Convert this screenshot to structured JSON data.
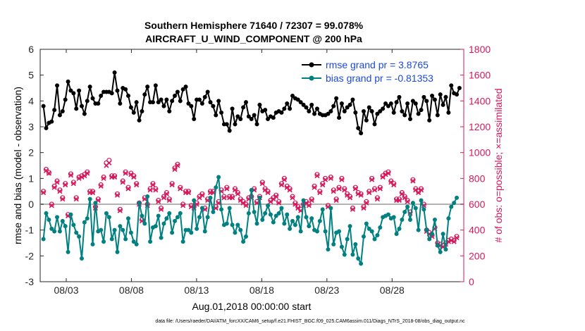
{
  "chart_data": {
    "type": "line",
    "title": "Southern Hemisphere 71640 / 72307 = 99.078%",
    "subtitle": "AIRCRAFT_U_WIND_COMPONENT @ 200 hPa",
    "xlabel": "Aug.01,2018 00:00:00 start",
    "ylabel": "rmse and bias (model - observation)",
    "y2label": "# of obs: o=possible; ×=assimilated",
    "xlim": [
      0,
      32.5
    ],
    "ylim": [
      -3,
      6
    ],
    "y2lim": [
      0,
      1800
    ],
    "x_ticks": [
      {
        "x": 2,
        "label": "08/03"
      },
      {
        "x": 7,
        "label": "08/08"
      },
      {
        "x": 12,
        "label": "08/13"
      },
      {
        "x": 17,
        "label": "08/18"
      },
      {
        "x": 22,
        "label": "08/23"
      },
      {
        "x": 27,
        "label": "08/28"
      }
    ],
    "y_ticks": [
      "-3",
      "-2",
      "-1",
      "0",
      "1",
      "2",
      "3",
      "4",
      "5",
      "6"
    ],
    "y2_ticks": [
      "0",
      "200",
      "400",
      "600",
      "800",
      "1000",
      "1200",
      "1400",
      "1600",
      "1800"
    ],
    "colors": {
      "rmse": "#000000",
      "bias": "#008080",
      "obs": "#d6185b",
      "zero": "#b3b3b3",
      "legend_text": "#1a48e0"
    },
    "legend": {
      "position": "top-right",
      "rmse_label": "rmse grand pr = 3.8765",
      "bias_label": "bias grand pr = -0.81353"
    },
    "series": [
      {
        "name": "rmse",
        "values": [
          3.8,
          2.95,
          3.15,
          3.2,
          3.65,
          4.6,
          3.45,
          3.6,
          4.05,
          4.75,
          4.4,
          4.3,
          3.7,
          4.4,
          3.8,
          3.5,
          4.0,
          4.55,
          4.1,
          3.9,
          3.9,
          4.2,
          4.35,
          4.35,
          4.35,
          4.3,
          5.1,
          4.4,
          3.9,
          4.5,
          4.45,
          4.2,
          3.75,
          3.55,
          3.95,
          3.25,
          3.6,
          4.25,
          4.55,
          3.95,
          3.95,
          4.6,
          3.95,
          4.05,
          3.8,
          4.05,
          3.6,
          4.0,
          4.2,
          4.35,
          4.0,
          4.45,
          4.55,
          3.9,
          3.8,
          3.3,
          4.05,
          4.05,
          3.9,
          4.15,
          4.35,
          3.95,
          3.8,
          3.45,
          4.0,
          3.55,
          3.1,
          3.1,
          2.85,
          3.7,
          3.1,
          3.4,
          3.3,
          3.75,
          3.95,
          3.4,
          3.3,
          3.45,
          3.1,
          3.85,
          3.6,
          3.65,
          3.3,
          3.4,
          3.35,
          3.55,
          3.6,
          3.55,
          3.7,
          3.9,
          3.7,
          4.2,
          4.1,
          4.05,
          3.95,
          3.85,
          3.75,
          3.6,
          3.85,
          3.5,
          3.7,
          3.5,
          3.45,
          3.45,
          3.5,
          3.6,
          3.8,
          4.1,
          3.35,
          3.9,
          3.6,
          3.75,
          3.85,
          4.05,
          3.55,
          2.95,
          2.75,
          3.6,
          3.25,
          3.75,
          3.6,
          3.1,
          3.5,
          3.6,
          3.7,
          3.9,
          3.8,
          3.9,
          3.55,
          3.95,
          4.15,
          3.6,
          3.45,
          3.9,
          3.3,
          4.0,
          3.9,
          3.5,
          3.65,
          4.15,
          4.0,
          3.25,
          4.2,
          4.05,
          3.45,
          4.25,
          3.85,
          4.15,
          3.55,
          4.6,
          4.3,
          4.25,
          4.5
        ]
      },
      {
        "name": "bias",
        "values": [
          -1.35,
          -0.35,
          -0.6,
          -0.95,
          -1.05,
          -0.5,
          -1.05,
          -0.65,
          -0.85,
          -1.85,
          -0.4,
          -0.8,
          -1.1,
          -1.25,
          -2.1,
          -0.7,
          -0.55,
          0.2,
          -1.55,
          0.05,
          -1.05,
          -1.0,
          -1.45,
          -0.35,
          -0.5,
          -1.35,
          -1.0,
          -1.85,
          -0.85,
          -1.0,
          -1.35,
          -0.55,
          -1.1,
          -1.45,
          -1.55,
          0.05,
          -0.45,
          -0.75,
          0.3,
          -1.45,
          -0.9,
          -0.85,
          -0.45,
          -1.3,
          -0.75,
          -0.55,
          -0.35,
          -1.1,
          -0.65,
          -0.5,
          -0.35,
          -1.45,
          -1.0,
          -1.0,
          -1.1,
          0.15,
          -0.95,
          -0.5,
          -0.15,
          -1.05,
          -0.5,
          0.25,
          -0.3,
          0.65,
          1.05,
          -0.2,
          -0.8,
          -0.75,
          -0.15,
          -0.8,
          -1.1,
          -0.8,
          -1.0,
          -1.45,
          -1.25,
          -0.35,
          0.55,
          -0.3,
          -0.75,
          0.25,
          -0.6,
          -0.35,
          -0.05,
          -0.4,
          -0.7,
          -0.45,
          -0.35,
          -0.15,
          -0.75,
          -0.4,
          -0.95,
          -0.65,
          -0.8,
          -0.5,
          -1.05,
          0.15,
          -0.5,
          -0.85,
          -0.55,
          -1.0,
          -1.05,
          -0.65,
          -0.2,
          -1.05,
          -1.75,
          -0.15,
          -1.55,
          -1.1,
          -1.05,
          -1.65,
          -1.95,
          -1.35,
          -0.85,
          -1.95,
          -1.55,
          -2.1,
          -2.3,
          -1.25,
          -0.75,
          -0.95,
          -1.05,
          -1.35,
          -1.2,
          -0.9,
          -0.5,
          -0.45,
          -0.4,
          -0.55,
          -0.5,
          -1.15,
          -0.95,
          -0.6,
          -0.3,
          -0.1,
          -0.6,
          0.05,
          -0.15,
          -1.0,
          0.15,
          -0.2,
          -1.0,
          -1.35,
          -1.15,
          -0.6,
          -1.6,
          -1.85,
          -1.15,
          -1.75,
          -0.55,
          -0.1,
          0.05,
          0.25
        ]
      },
      {
        "name": "obs_possible",
        "values": [
          700,
          870,
          845,
          600,
          740,
          780,
          710,
          650,
          760,
          520,
          835,
          770,
          650,
          810,
          820,
          830,
          850,
          700,
          700,
          580,
          640,
          750,
          810,
          920,
          940,
          820,
          820,
          680,
          560,
          780,
          850,
          730,
          840,
          820,
          760,
          610,
          480,
          650,
          600,
          720,
          760,
          720,
          630,
          570,
          660,
          690,
          640,
          760,
          880,
          910,
          730,
          600,
          700,
          700,
          590,
          580,
          610,
          660,
          680,
          570,
          640,
          700,
          700,
          580,
          620,
          710,
          660,
          730,
          660,
          660,
          720,
          690,
          640,
          620,
          600,
          650,
          660,
          720,
          620,
          660,
          770,
          720,
          700,
          630,
          650,
          670,
          620,
          760,
          800,
          740,
          720,
          660,
          610,
          580,
          560,
          600,
          620,
          600,
          640,
          740,
          830,
          700,
          760,
          800,
          590,
          810,
          710,
          640,
          730,
          800,
          720,
          680,
          660,
          570,
          730,
          690,
          680,
          580,
          620,
          700,
          800,
          720,
          650,
          730,
          820,
          840,
          850,
          780,
          760,
          640,
          640,
          690,
          660,
          630,
          540,
          790,
          720,
          700,
          720,
          600,
          400,
          380,
          360,
          420,
          300,
          290,
          280,
          300,
          320,
          330,
          320,
          350
        ]
      },
      {
        "name": "obs_assimilated",
        "values": [
          690,
          860,
          840,
          590,
          730,
          770,
          700,
          640,
          750,
          510,
          825,
          760,
          640,
          800,
          810,
          820,
          840,
          690,
          690,
          570,
          630,
          740,
          800,
          900,
          920,
          810,
          810,
          670,
          550,
          770,
          840,
          720,
          830,
          810,
          750,
          600,
          470,
          640,
          590,
          710,
          750,
          710,
          620,
          560,
          650,
          680,
          630,
          750,
          870,
          900,
          720,
          590,
          690,
          690,
          580,
          570,
          600,
          650,
          670,
          560,
          630,
          690,
          690,
          570,
          610,
          700,
          650,
          720,
          650,
          650,
          710,
          680,
          630,
          610,
          590,
          640,
          650,
          710,
          610,
          650,
          760,
          710,
          690,
          620,
          640,
          660,
          610,
          750,
          790,
          730,
          710,
          650,
          600,
          570,
          550,
          590,
          610,
          590,
          630,
          730,
          820,
          690,
          750,
          790,
          580,
          800,
          700,
          630,
          720,
          790,
          710,
          670,
          650,
          560,
          720,
          680,
          670,
          570,
          610,
          690,
          790,
          710,
          640,
          720,
          810,
          830,
          840,
          770,
          750,
          630,
          630,
          680,
          650,
          620,
          530,
          780,
          710,
          690,
          710,
          590,
          390,
          370,
          350,
          410,
          290,
          280,
          270,
          290,
          310,
          320,
          310,
          340
        ]
      }
    ]
  },
  "footer": {
    "data_file": "data file: /Users/raeder/DAI/ATM_forcXX/CAM6_setup/f.e21.FHIST_BGC.f09_025.CAM6assim.011/Diags_NTrS_2018-08/obs_diag_output.nc"
  }
}
